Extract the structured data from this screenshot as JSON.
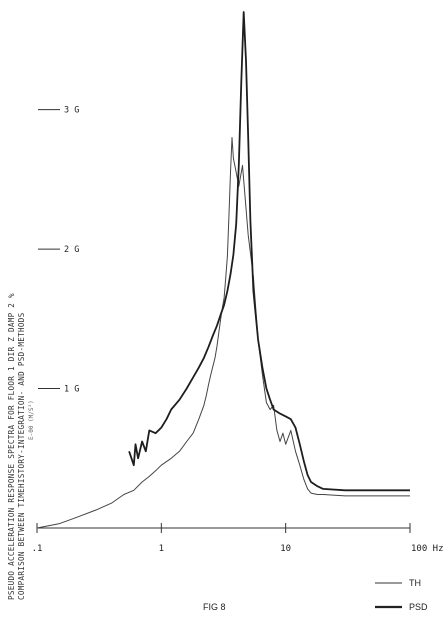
{
  "chart_data": {
    "type": "line",
    "title_lines": [
      "PSEUDO ACCELERATION RESPONSE SPECTRA FOR FLOOR  1  DIR Z  DAMP 2 %",
      "COMPARISON BETWEEN TIMEHISTORY-INTEGRATION- AND PSD-METHODS"
    ],
    "unit_note": "E-00 (M/S²)",
    "x_scale": "log",
    "x_tick_labels": [
      ".1",
      "1",
      "10",
      "100 Hz"
    ],
    "x_tick_values": [
      0.1,
      1,
      10,
      100
    ],
    "xlim": [
      0.1,
      100
    ],
    "ylim": [
      0,
      3.75
    ],
    "y_tick_labels": [
      "1 G",
      "2 G",
      "3 G"
    ],
    "y_tick_values": [
      1,
      2,
      3
    ],
    "legend_placement": "bottom-right",
    "series": [
      {
        "name": "TH",
        "x": [
          0.1,
          0.15,
          0.2,
          0.3,
          0.4,
          0.5,
          0.6,
          0.7,
          0.8,
          0.9,
          1.0,
          1.2,
          1.4,
          1.6,
          1.8,
          2.0,
          2.2,
          2.3,
          2.4,
          2.5,
          2.6,
          2.7,
          2.8,
          2.9,
          3.0,
          3.1,
          3.2,
          3.3,
          3.4,
          3.5,
          3.6,
          3.7,
          3.8,
          4.0,
          4.2,
          4.5,
          5.0,
          5.5,
          6.0,
          6.5,
          7.0,
          7.5,
          8.0,
          8.5,
          9.0,
          9.5,
          10,
          11,
          12,
          13,
          14,
          15,
          16,
          18,
          20,
          30,
          50,
          100
        ],
        "values": [
          0.0,
          0.03,
          0.07,
          0.13,
          0.18,
          0.24,
          0.27,
          0.33,
          0.37,
          0.41,
          0.45,
          0.5,
          0.55,
          0.62,
          0.68,
          0.78,
          0.88,
          0.95,
          1.03,
          1.1,
          1.16,
          1.22,
          1.3,
          1.4,
          1.5,
          1.58,
          1.65,
          1.8,
          1.95,
          2.25,
          2.55,
          2.8,
          2.65,
          2.55,
          2.45,
          2.6,
          2.1,
          1.8,
          1.35,
          1.1,
          0.9,
          0.85,
          0.88,
          0.7,
          0.62,
          0.68,
          0.6,
          0.7,
          0.55,
          0.45,
          0.35,
          0.28,
          0.25,
          0.24,
          0.24,
          0.23,
          0.23,
          0.23
        ]
      },
      {
        "name": "PSD",
        "x": [
          0.55,
          0.6,
          0.62,
          0.65,
          0.7,
          0.75,
          0.8,
          0.9,
          1.0,
          1.1,
          1.2,
          1.4,
          1.6,
          1.8,
          2.0,
          2.2,
          2.4,
          2.6,
          2.8,
          3.0,
          3.2,
          3.4,
          3.6,
          3.8,
          4.0,
          4.2,
          4.4,
          4.6,
          4.8,
          5.0,
          5.2,
          5.5,
          6.0,
          6.5,
          7.0,
          7.5,
          8.0,
          9.0,
          10,
          11,
          12,
          13,
          14,
          15,
          16,
          18,
          20,
          30,
          50,
          100
        ],
        "values": [
          0.55,
          0.45,
          0.6,
          0.5,
          0.62,
          0.55,
          0.7,
          0.68,
          0.72,
          0.78,
          0.85,
          0.92,
          1.0,
          1.08,
          1.15,
          1.22,
          1.3,
          1.38,
          1.45,
          1.53,
          1.6,
          1.7,
          1.82,
          1.96,
          2.18,
          2.6,
          3.2,
          3.7,
          3.35,
          2.8,
          2.2,
          1.7,
          1.35,
          1.15,
          1.0,
          0.92,
          0.85,
          0.82,
          0.8,
          0.78,
          0.72,
          0.6,
          0.48,
          0.38,
          0.33,
          0.3,
          0.28,
          0.27,
          0.27,
          0.27
        ]
      }
    ],
    "caption": "FIG 8"
  }
}
